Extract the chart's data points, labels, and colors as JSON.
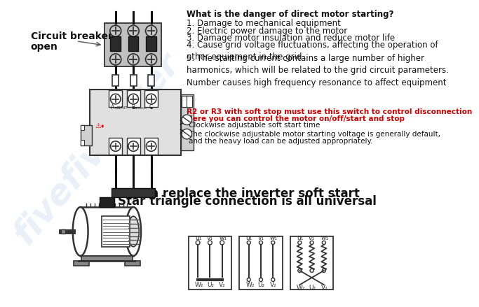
{
  "bg_color": "#ffffff",
  "watermark_text": "fivefivefiver",
  "watermark_color": "#b8cfe8",
  "watermark_alpha": 0.3,
  "label_circuit_breaker": "Circuit breaker /\nopen",
  "right_text_title": "What is the danger of direct motor starting?",
  "right_text_items": [
    "1. Damage to mechanical equipment",
    "2. Electric power damage to the motor",
    "3. Damage motor insulation and reduce motor life",
    "4. Cause grid voltage fluctuations, affecting the operation of\nother equipment in the grid",
    "5. The starting current contains a large number of higher\nharmonics, which will be related to the grid circuit parameters.\nNumber causes high frequency resonance to affect equipment"
  ],
  "red_text_1": "R2 or R3 with soft stop must use this switch to control disconnection",
  "red_text_2": "Here you can control the motor on/off/start and stop",
  "arrow_text_1": "Clockwise adjustable soft start time",
  "arrow_text_2a": "The clockwise adjustable motor starting voltage is generally default,",
  "arrow_text_2b": "and the heavy load can be adjusted appropriately.",
  "title_line1": "Can replace the inverter soft start",
  "title_line2": "Star triangle connection is all universal",
  "cb_color": "#c0c0c0",
  "ss_color": "#d8d8d8",
  "wire_color": "#111111",
  "component_ec": "#333333"
}
